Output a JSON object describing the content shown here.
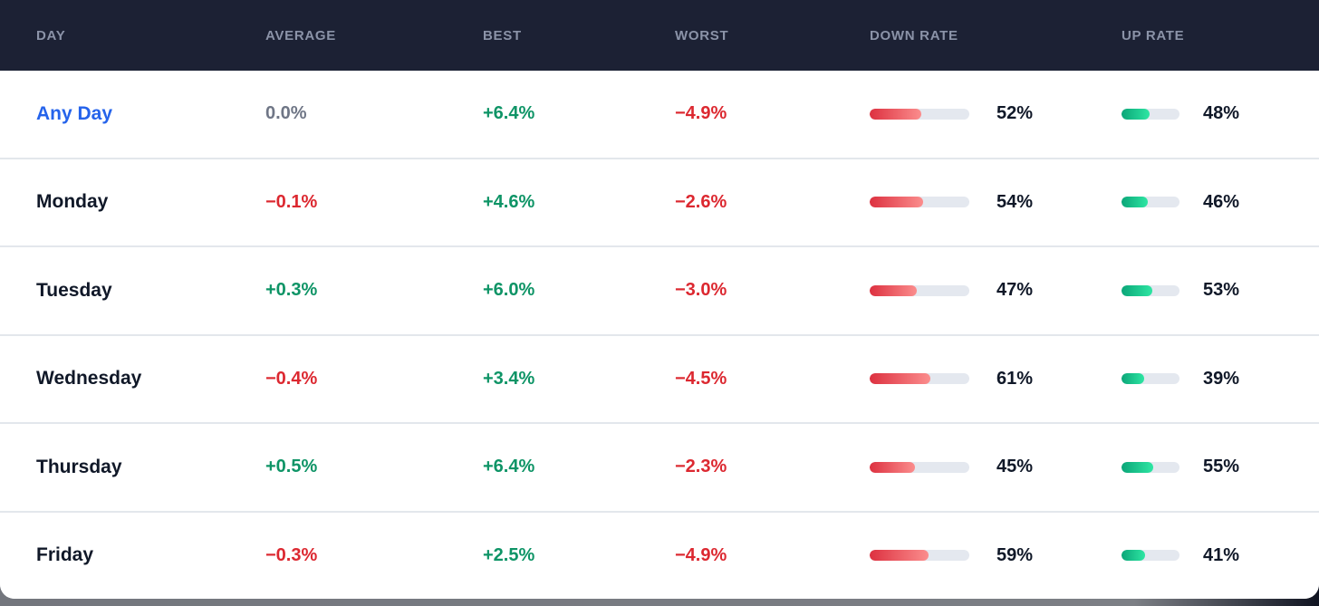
{
  "header": {
    "columns": {
      "day": "DAY",
      "average": "AVERAGE",
      "best": "BEST",
      "worst": "WORST",
      "down_rate": "DOWN RATE",
      "up_rate": "UP RATE"
    }
  },
  "colors": {
    "header_bg": "#1c2134",
    "header_text": "#8b93a8",
    "link_blue": "#2563eb",
    "positive_green": "#0e9466",
    "negative_red": "#dc2830",
    "neutral_gray": "#6f7686",
    "down_bar_gradient": [
      "#dd3140",
      "#fb8d8d"
    ],
    "up_bar_gradient": [
      "#0ba678",
      "#2ee6a3"
    ],
    "bar_track": "#e4e8ef"
  },
  "rows": [
    {
      "day": "Any Day",
      "day_tone": "blue",
      "average": "0.0%",
      "average_tone": "neutral",
      "best": "+6.4%",
      "best_tone": "green",
      "worst": "−4.9%",
      "worst_tone": "red",
      "down_rate_pct": 52,
      "down_rate_label": "52%",
      "up_rate_pct": 48,
      "up_rate_label": "48%"
    },
    {
      "day": "Monday",
      "day_tone": "dark",
      "average": "−0.1%",
      "average_tone": "red",
      "best": "+4.6%",
      "best_tone": "green",
      "worst": "−2.6%",
      "worst_tone": "red",
      "down_rate_pct": 54,
      "down_rate_label": "54%",
      "up_rate_pct": 46,
      "up_rate_label": "46%"
    },
    {
      "day": "Tuesday",
      "day_tone": "dark",
      "average": "+0.3%",
      "average_tone": "green",
      "best": "+6.0%",
      "best_tone": "green",
      "worst": "−3.0%",
      "worst_tone": "red",
      "down_rate_pct": 47,
      "down_rate_label": "47%",
      "up_rate_pct": 53,
      "up_rate_label": "53%"
    },
    {
      "day": "Wednesday",
      "day_tone": "dark",
      "average": "−0.4%",
      "average_tone": "red",
      "best": "+3.4%",
      "best_tone": "green",
      "worst": "−4.5%",
      "worst_tone": "red",
      "down_rate_pct": 61,
      "down_rate_label": "61%",
      "up_rate_pct": 39,
      "up_rate_label": "39%"
    },
    {
      "day": "Thursday",
      "day_tone": "dark",
      "average": "+0.5%",
      "average_tone": "green",
      "best": "+6.4%",
      "best_tone": "green",
      "worst": "−2.3%",
      "worst_tone": "red",
      "down_rate_pct": 45,
      "down_rate_label": "45%",
      "up_rate_pct": 55,
      "up_rate_label": "55%"
    },
    {
      "day": "Friday",
      "day_tone": "dark",
      "average": "−0.3%",
      "average_tone": "red",
      "best": "+2.5%",
      "best_tone": "green",
      "worst": "−4.9%",
      "worst_tone": "red",
      "down_rate_pct": 59,
      "down_rate_label": "59%",
      "up_rate_pct": 41,
      "up_rate_label": "41%"
    }
  ]
}
